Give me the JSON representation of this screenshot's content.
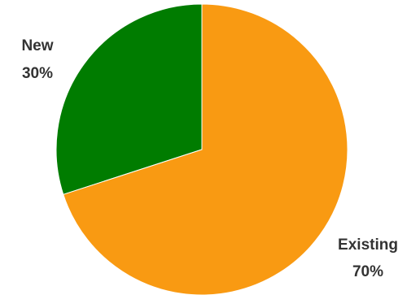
{
  "chart_data": {
    "type": "pie",
    "slices": [
      {
        "label": "New",
        "value": 30,
        "percent_label": "30%",
        "color": "#007c00"
      },
      {
        "label": "Existing",
        "value": 70,
        "percent_label": "70%",
        "color": "#f99a12"
      }
    ],
    "start": "12 o'clock",
    "direction": "counter-clockwise",
    "legend": "none"
  }
}
